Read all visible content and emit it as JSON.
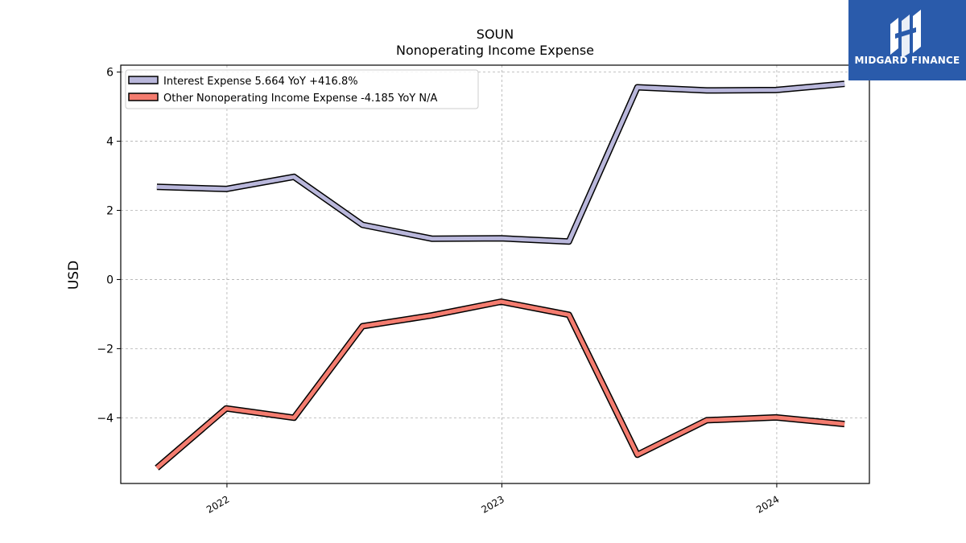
{
  "chart_data": {
    "type": "line",
    "title": "SOUN",
    "subtitle": "Nonoperating Income Expense",
    "ylabel": "USD",
    "xlabel": "",
    "ylim": [
      -5.9,
      6.2
    ],
    "yticks": [
      -4,
      -2,
      0,
      2,
      4,
      6
    ],
    "xlim": [
      "2021-08-13",
      "2024-05-03"
    ],
    "xticks": [
      {
        "date": "2022-01-01",
        "label": "2022"
      },
      {
        "date": "2023-01-01",
        "label": "2023"
      },
      {
        "date": "2024-01-01",
        "label": "2024"
      }
    ],
    "grid": true,
    "legend_position": "top-left",
    "x": [
      "2021-09-30",
      "2021-12-31",
      "2022-03-31",
      "2022-06-30",
      "2022-09-30",
      "2022-12-31",
      "2023-03-31",
      "2023-06-30",
      "2023-09-30",
      "2023-12-31",
      "2024-03-31"
    ],
    "series": [
      {
        "name": "Interest Expense",
        "legend_label": "Interest Expense  5.664 YoY +416.8%",
        "color": "#b9b7db",
        "values": [
          2.68,
          2.62,
          2.97,
          1.58,
          1.18,
          1.19,
          1.1,
          5.56,
          5.47,
          5.48,
          5.66
        ]
      },
      {
        "name": "Other Nonoperating Income Expense",
        "legend_label": "Other Nonoperating Income Expense  -4.185 YoY N/A",
        "color": "#f47c6f",
        "values": [
          -5.45,
          -3.73,
          -4.0,
          -1.35,
          -1.04,
          -0.64,
          -1.02,
          -5.07,
          -4.07,
          -3.99,
          -4.18
        ]
      }
    ]
  },
  "branding": {
    "name": "MIDGARD FINANCE",
    "background": "#2a5bab"
  }
}
